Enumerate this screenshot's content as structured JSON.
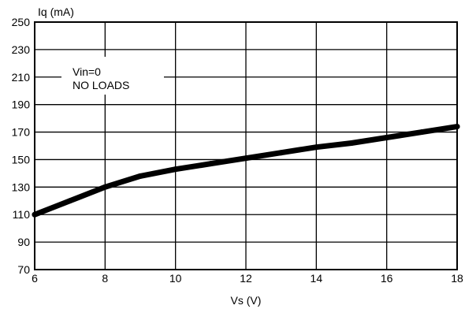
{
  "chart_data": {
    "type": "line",
    "ylabel": "Iq (mA)",
    "xlabel": "Vs (V)",
    "xlim": [
      6,
      18
    ],
    "ylim": [
      70,
      250
    ],
    "x_ticks": [
      6,
      8,
      10,
      12,
      14,
      16,
      18
    ],
    "y_ticks": [
      70,
      90,
      110,
      130,
      150,
      170,
      190,
      210,
      230,
      250
    ],
    "x_tick_labels": [
      "6",
      "8",
      "10",
      "12",
      "14",
      "16",
      "18"
    ],
    "y_tick_labels": [
      "70",
      "90",
      "110",
      "130",
      "150",
      "170",
      "190",
      "210",
      "230",
      "250"
    ],
    "grid": true,
    "annotation": [
      "Vin=0",
      "NO LOADS"
    ],
    "series": [
      {
        "color": "#000000",
        "x": [
          6,
          7,
          8,
          9,
          10,
          11,
          12,
          13,
          14,
          15,
          16,
          17,
          18
        ],
        "y": [
          110,
          120,
          130,
          138,
          143,
          147,
          151,
          155,
          159,
          162,
          166,
          170,
          174
        ]
      }
    ]
  }
}
